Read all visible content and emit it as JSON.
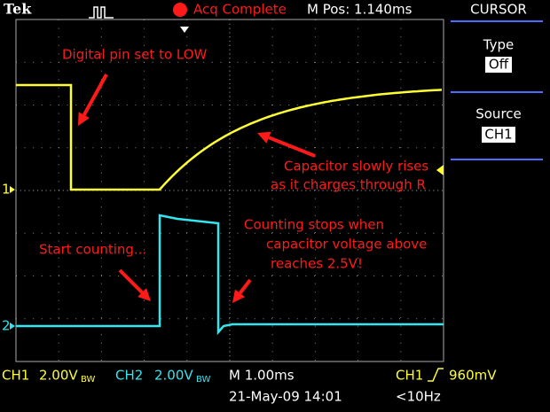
{
  "header": {
    "brand": "Tek",
    "status": "Acq Complete",
    "position": "M Pos: 1.140ms"
  },
  "menu": {
    "title": "CURSOR",
    "items": [
      {
        "label": "Type",
        "value": "Off"
      },
      {
        "label": "Source",
        "value": "CH1"
      }
    ]
  },
  "channel_markers": [
    "1",
    "2"
  ],
  "annotations": [
    "Digital pin set to LOW",
    "Capacitor slowly rises",
    "as it charges through R",
    "Counting stops when",
    "capacitor voltage above",
    "reaches 2.5V!",
    "Start counting..."
  ],
  "footer": {
    "ch1": {
      "name": "CH1",
      "scale": "2.00V",
      "bw": "BW"
    },
    "ch2": {
      "name": "CH2",
      "scale": "2.00V",
      "bw": "BW"
    },
    "timebase": "M 1.00ms",
    "trigger_source": "CH1",
    "trigger_level": "960mV",
    "date": "21-May-09 14:01",
    "frequency": "<10Hz"
  }
}
